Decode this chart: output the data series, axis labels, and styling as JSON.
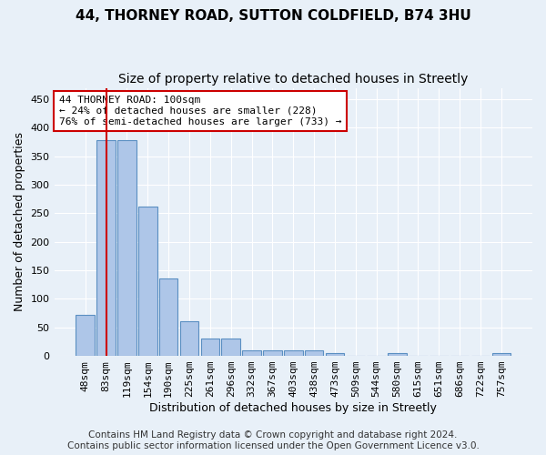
{
  "title": "44, THORNEY ROAD, SUTTON COLDFIELD, B74 3HU",
  "subtitle": "Size of property relative to detached houses in Streetly",
  "xlabel": "Distribution of detached houses by size in Streetly",
  "ylabel": "Number of detached properties",
  "categories": [
    "48sqm",
    "83sqm",
    "119sqm",
    "154sqm",
    "190sqm",
    "225sqm",
    "261sqm",
    "296sqm",
    "332sqm",
    "367sqm",
    "403sqm",
    "438sqm",
    "473sqm",
    "509sqm",
    "544sqm",
    "580sqm",
    "615sqm",
    "651sqm",
    "686sqm",
    "722sqm",
    "757sqm"
  ],
  "values": [
    72,
    378,
    378,
    262,
    136,
    60,
    30,
    30,
    10,
    10,
    10,
    10,
    5,
    0,
    0,
    5,
    0,
    0,
    0,
    0,
    5
  ],
  "bar_color": "#aec6e8",
  "bar_edge_color": "#5a8fc2",
  "red_line_x": 1.0,
  "annotation_text": "44 THORNEY ROAD: 100sqm\n← 24% of detached houses are smaller (228)\n76% of semi-detached houses are larger (733) →",
  "annotation_box_color": "#ffffff",
  "annotation_box_edge": "#cc0000",
  "red_line_color": "#cc0000",
  "ylim": [
    0,
    470
  ],
  "yticks": [
    0,
    50,
    100,
    150,
    200,
    250,
    300,
    350,
    400,
    450
  ],
  "bg_color": "#e8f0f8",
  "grid_color": "#ffffff",
  "footer": "Contains HM Land Registry data © Crown copyright and database right 2024.\nContains public sector information licensed under the Open Government Licence v3.0.",
  "title_fontsize": 11,
  "subtitle_fontsize": 10,
  "axis_label_fontsize": 9,
  "tick_fontsize": 8,
  "footer_fontsize": 7.5
}
